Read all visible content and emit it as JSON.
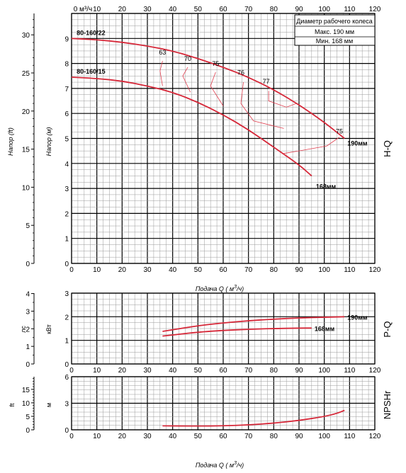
{
  "chart_data": [
    {
      "id": "hq",
      "type": "line",
      "x_unit_top": "0 м³/ч",
      "left_axis_label": "Напор (ft)",
      "right_axis_label": "Напор (м)",
      "xlabel": "Подача Q ( м³/ч)",
      "side_label": "H-Q",
      "xlim": [
        0,
        120
      ],
      "ylim": [
        0,
        10
      ],
      "ylim_ft": [
        0,
        32.8
      ],
      "x_ticks": [
        "0",
        "10",
        "20",
        "30",
        "40",
        "50",
        "60",
        "70",
        "80",
        "90",
        "100",
        "110",
        "120"
      ],
      "y_ticks": [
        "0",
        "1",
        "2",
        "3",
        "4",
        "5",
        "6",
        "7",
        "8",
        "9"
      ],
      "y_ticks_ft": [
        "0",
        "5",
        "10",
        "15",
        "20",
        "25",
        "30"
      ],
      "series": [
        {
          "name": "80-160/22",
          "end_label": "190мм",
          "x": [
            0,
            10,
            20,
            30,
            40,
            50,
            60,
            70,
            80,
            90,
            100,
            108
          ],
          "y": [
            9.0,
            8.95,
            8.85,
            8.7,
            8.5,
            8.2,
            7.85,
            7.45,
            6.95,
            6.35,
            5.65,
            5.0
          ]
        },
        {
          "name": "80-160/15",
          "end_label": "168мм",
          "x": [
            0,
            10,
            20,
            30,
            40,
            50,
            60,
            70,
            80,
            90,
            95
          ],
          "y": [
            7.45,
            7.4,
            7.3,
            7.1,
            6.85,
            6.45,
            5.95,
            5.35,
            4.65,
            3.95,
            3.5
          ]
        }
      ],
      "efficiency_labels": [
        "63",
        "70",
        "75",
        "76",
        "77",
        "75"
      ],
      "legend": {
        "title": "Диаметр рабочего колеса",
        "row1": "Макс.  190 мм",
        "row2": "Мин.   168 мм"
      }
    },
    {
      "id": "pq",
      "type": "line",
      "left_axis_label": "лс",
      "right_axis_label": "кВт",
      "xlabel": "Подача Q ( м³/ч)",
      "side_label": "P-Q",
      "xlim": [
        0,
        120
      ],
      "ylim": [
        0,
        3
      ],
      "x_ticks": [
        "0",
        "10",
        "20",
        "30",
        "40",
        "50",
        "60",
        "70",
        "80",
        "90",
        "100",
        "110",
        "120"
      ],
      "y_ticks": [
        "0",
        "1",
        "2",
        "3"
      ],
      "y_ticks_hp": [
        "0",
        "1",
        "2",
        "3",
        "4"
      ],
      "series": [
        {
          "end_label": "190мм",
          "x": [
            36,
            50,
            60,
            70,
            80,
            90,
            100,
            108
          ],
          "y": [
            1.38,
            1.62,
            1.74,
            1.83,
            1.9,
            1.95,
            1.98,
            2.0
          ]
        },
        {
          "end_label": "168мм",
          "x": [
            36,
            50,
            60,
            70,
            80,
            90,
            95
          ],
          "y": [
            1.18,
            1.35,
            1.42,
            1.47,
            1.5,
            1.52,
            1.52
          ]
        }
      ]
    },
    {
      "id": "npsh",
      "type": "line",
      "left_axis_label": "ft",
      "right_axis_label": "м",
      "side_label": "NPSHr",
      "xlabel": "Подача Q ( м³/ч)",
      "xlim": [
        0,
        120
      ],
      "ylim": [
        0,
        6
      ],
      "x_ticks": [
        "0",
        "10",
        "20",
        "30",
        "40",
        "50",
        "60",
        "70",
        "80",
        "90",
        "100",
        "110",
        "120"
      ],
      "y_ticks": [
        "0",
        "3",
        "6"
      ],
      "y_ticks_ft": [
        "0",
        "5",
        "10",
        "15"
      ],
      "series": [
        {
          "x": [
            36,
            50,
            60,
            70,
            80,
            90,
            100,
            105,
            108
          ],
          "y": [
            0.45,
            0.42,
            0.45,
            0.55,
            0.75,
            1.05,
            1.5,
            1.85,
            2.2
          ]
        }
      ]
    }
  ],
  "colors": {
    "curve": "#d62839",
    "grid": "#9a9a9a",
    "major": "#000000",
    "eff": "#e04050"
  }
}
